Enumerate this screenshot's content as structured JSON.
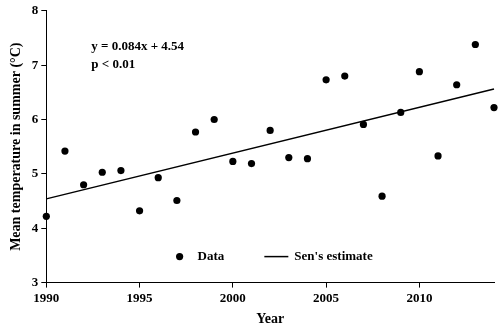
{
  "chart_data": {
    "type": "scatter",
    "x_label": "Year",
    "y_label": "Mean temperature in summer (°C)",
    "annotations": [
      "y = 0.084x + 4.54",
      "p < 0.01"
    ],
    "series": [
      {
        "name": "Data",
        "type": "scatter",
        "marker": "circle",
        "color": "#000000",
        "x": [
          1990,
          1991,
          1992,
          1993,
          1994,
          1995,
          1996,
          1997,
          1998,
          1999,
          2000,
          2001,
          2002,
          2003,
          2004,
          2005,
          2006,
          2007,
          2008,
          2009,
          2010,
          2011,
          2012,
          2013,
          2014
        ],
        "values": [
          4.22,
          5.42,
          4.8,
          5.03,
          5.06,
          4.32,
          4.93,
          4.51,
          5.77,
          6.0,
          5.23,
          5.19,
          5.8,
          5.3,
          5.28,
          6.73,
          6.8,
          5.91,
          4.59,
          6.13,
          6.88,
          5.33,
          6.64,
          7.38,
          6.22
        ]
      },
      {
        "name": "Sen's estimate",
        "type": "line",
        "line_style": "solid",
        "color": "#000000",
        "x": [
          1990,
          2014
        ],
        "values": [
          4.54,
          6.56
        ]
      }
    ],
    "xlim": [
      1990,
      2014
    ],
    "xticks": [
      1990,
      1995,
      2000,
      2005,
      2010
    ],
    "ylim": [
      3,
      8
    ],
    "yticks": [
      3,
      4,
      5,
      6,
      7,
      8
    ],
    "grid": false,
    "legend": "bottom"
  }
}
